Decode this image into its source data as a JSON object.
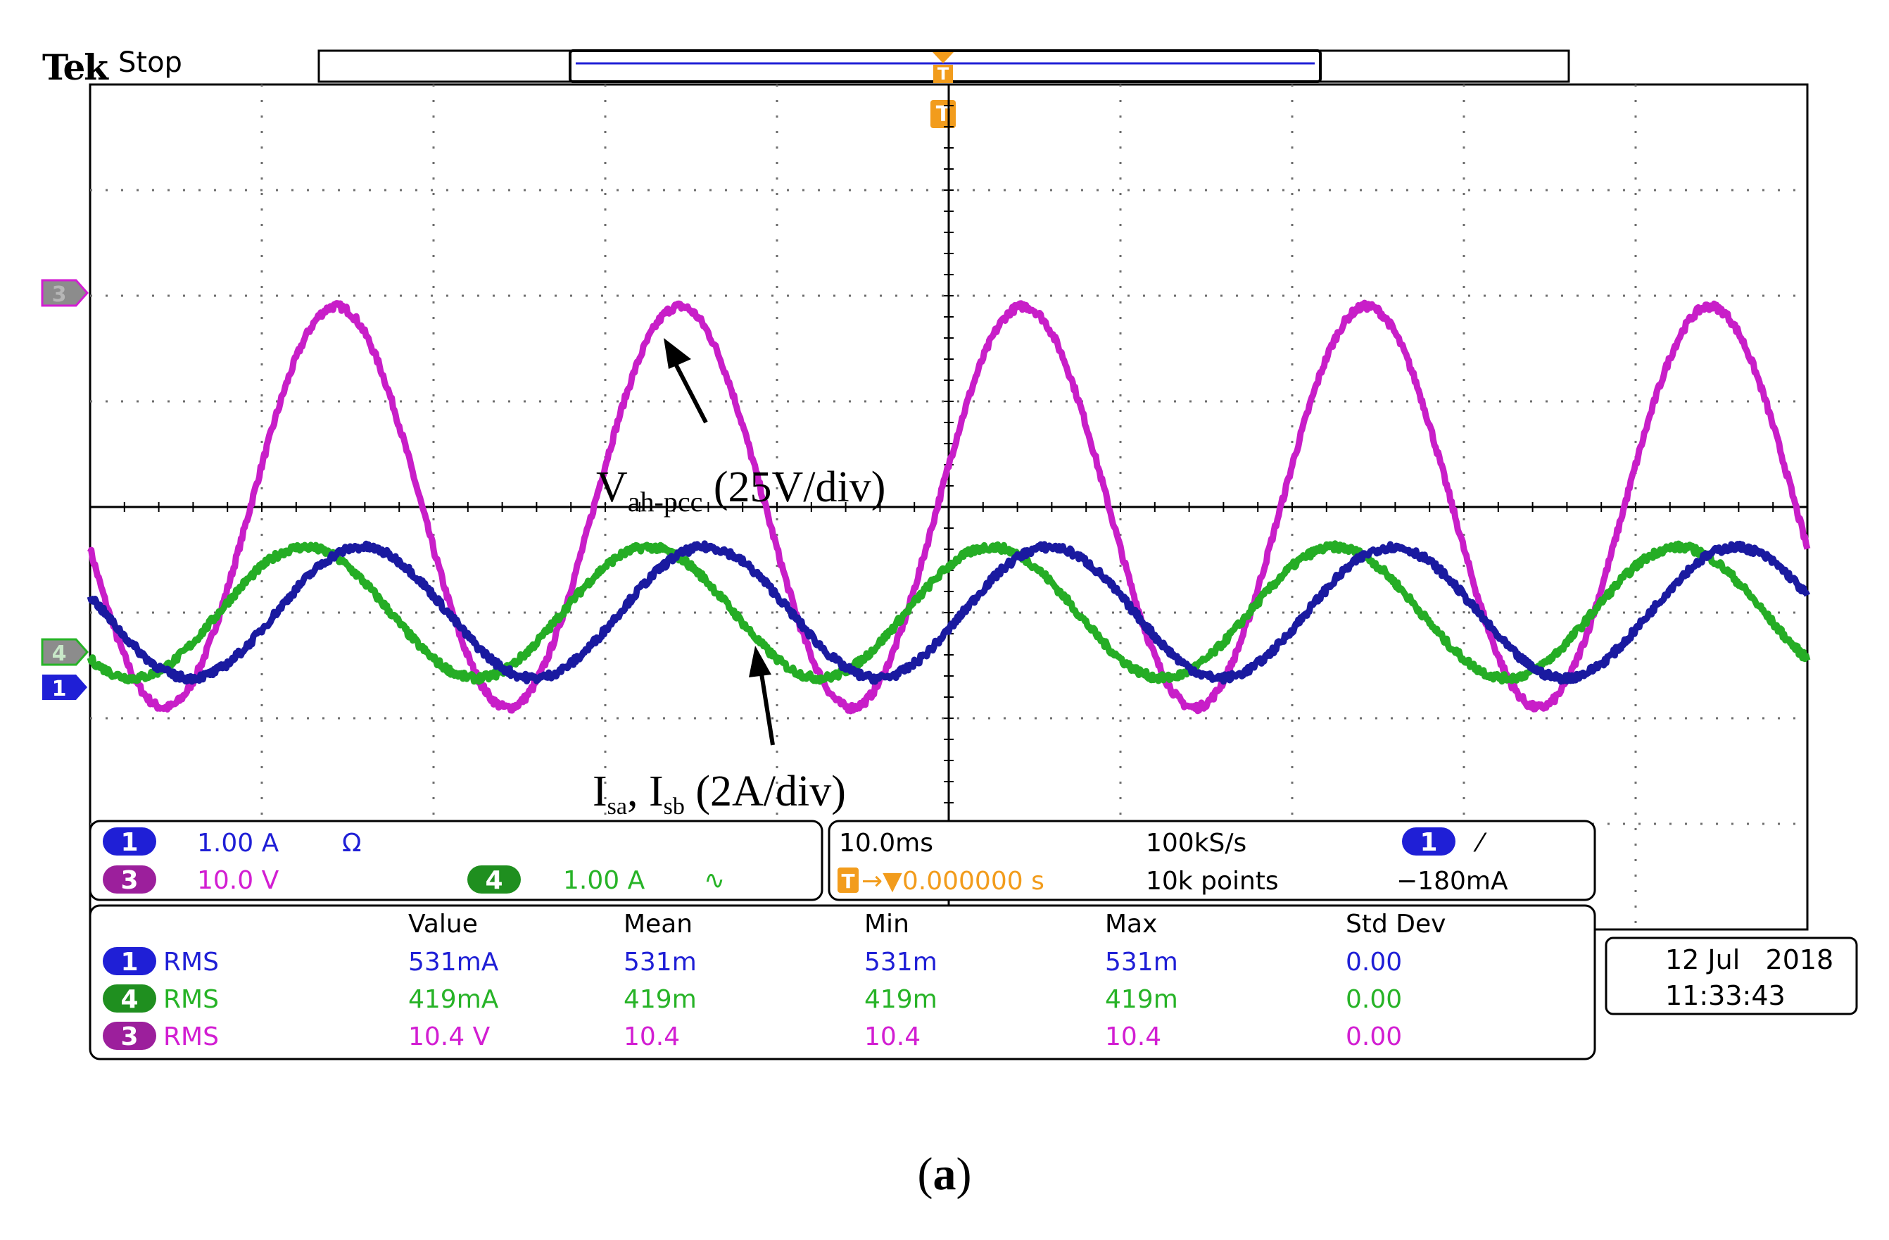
{
  "header": {
    "brand": "Tek",
    "state": "Stop",
    "trigger_marker": "T"
  },
  "colors": {
    "ch1": "#1f1fd6",
    "ch3": "#d21ed2",
    "ch4": "#27b327",
    "ch1_trace": "#1a1aa0",
    "ch3_trace": "#c81ec8",
    "ch4_trace": "#25ad25",
    "trigger": "#f29c1c",
    "grid": "#6e6e6e",
    "text": "#000000"
  },
  "chart_data": {
    "type": "line",
    "x_axis": {
      "unit": "ms",
      "per_div": 10.0,
      "divisions": 10,
      "range_ms": [
        -50,
        50
      ]
    },
    "y_axis": {
      "divisions": 8
    },
    "series": [
      {
        "channel": "3",
        "name": "Vah-pcc (25V/div)",
        "amplitude_div": 1.9,
        "offset_div": 0,
        "period_ms": 20,
        "phase_deg": 12
      },
      {
        "channel": "4",
        "name": "Isa, Isb (2A/div)",
        "amplitude_div": 0.62,
        "offset_div": -1.0,
        "period_ms": 20,
        "phase_deg": 45
      },
      {
        "channel": "1",
        "name": "Isa, Isb (2A/div)",
        "amplitude_div": 0.62,
        "offset_div": -1.0,
        "period_ms": 20,
        "phase_deg": -15
      }
    ],
    "annotations": {
      "voltage": {
        "main": "V",
        "sub": "ah-pcc",
        "rest": " (25V/div)"
      },
      "current": {
        "a": "I",
        "a_sub": "sa",
        "sep": ", I",
        "b_sub": "sb",
        "rest": " (2A/div)"
      }
    }
  },
  "markers": {
    "ch3": "3",
    "ch4": "4",
    "ch1": "1"
  },
  "channels_panel": {
    "ch1": {
      "num": "1",
      "scale": "1.00 A",
      "coupling": "Ω"
    },
    "ch3": {
      "num": "3",
      "scale": "10.0 V"
    },
    "ch4": {
      "num": "4",
      "scale": "1.00 A",
      "coupling": "∿"
    }
  },
  "timebase_panel": {
    "time_div": "10.0ms",
    "sample_rate": "100kS/s",
    "trig_ch": "1",
    "slope": "⁄",
    "trig_pos_icon": "T",
    "trig_pos": "→▼0.000000 s",
    "record": "10k points",
    "trig_level": "−180mA"
  },
  "measure_panel": {
    "headers": [
      "Value",
      "Mean",
      "Min",
      "Max",
      "Std Dev"
    ],
    "rows": [
      {
        "ch": "1",
        "type": "RMS",
        "values": [
          "531mA",
          "531m",
          "531m",
          "531m",
          "0.00"
        ]
      },
      {
        "ch": "4",
        "type": "RMS",
        "values": [
          "419mA",
          "419m",
          "419m",
          "419m",
          "0.00"
        ]
      },
      {
        "ch": "3",
        "type": "RMS",
        "values": [
          "10.4 V",
          "10.4",
          "10.4",
          "10.4",
          "0.00"
        ]
      }
    ]
  },
  "datetime": {
    "date": "12 Jul   2018",
    "time": "11:33:43"
  },
  "caption": {
    "open": "(",
    "letter": "a",
    "close": ")"
  }
}
